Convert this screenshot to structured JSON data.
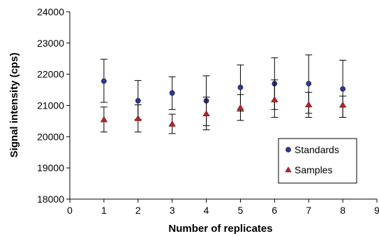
{
  "chart_data": {
    "type": "scatter",
    "xlabel": "Number of replicates",
    "ylabel": "Signal intensity (cps)",
    "xlim": [
      0,
      9
    ],
    "ylim": [
      18000,
      24000
    ],
    "x_ticks": [
      0,
      1,
      2,
      3,
      4,
      5,
      6,
      7,
      8,
      9
    ],
    "y_ticks": [
      18000,
      19000,
      20000,
      21000,
      22000,
      23000,
      24000
    ],
    "x_tick_labels": [
      "0",
      "1",
      "2",
      "3",
      "4",
      "5",
      "6",
      "7",
      "8",
      "9"
    ],
    "y_tick_labels": [
      "18000",
      "19000",
      "20000",
      "21000",
      "22000",
      "23000",
      "24000"
    ],
    "grid": false,
    "legend_position": "bottom-right",
    "series": [
      {
        "name": "Standards",
        "marker": "circle",
        "color": "#2e3a8c",
        "x": [
          1,
          2,
          3,
          4,
          5,
          6,
          7,
          8
        ],
        "y": [
          21780,
          21150,
          21400,
          21150,
          21580,
          21700,
          21700,
          21530
        ],
        "y_err_low": [
          21100,
          20550,
          20870,
          20350,
          20820,
          20870,
          20750,
          20620
        ],
        "y_err_high": [
          22480,
          21800,
          21920,
          21950,
          22300,
          22530,
          22620,
          22450
        ]
      },
      {
        "name": "Samples",
        "marker": "triangle",
        "color": "#b8262a",
        "x": [
          1,
          2,
          3,
          4,
          5,
          6,
          7,
          8
        ],
        "y": [
          20540,
          20580,
          20400,
          20730,
          20920,
          21180,
          21020,
          21010
        ],
        "y_err_low": [
          20150,
          20150,
          20100,
          20220,
          20520,
          20620,
          20620,
          20620
        ],
        "y_err_high": [
          20950,
          21020,
          20720,
          21270,
          21350,
          21820,
          21420,
          21300
        ]
      }
    ]
  }
}
